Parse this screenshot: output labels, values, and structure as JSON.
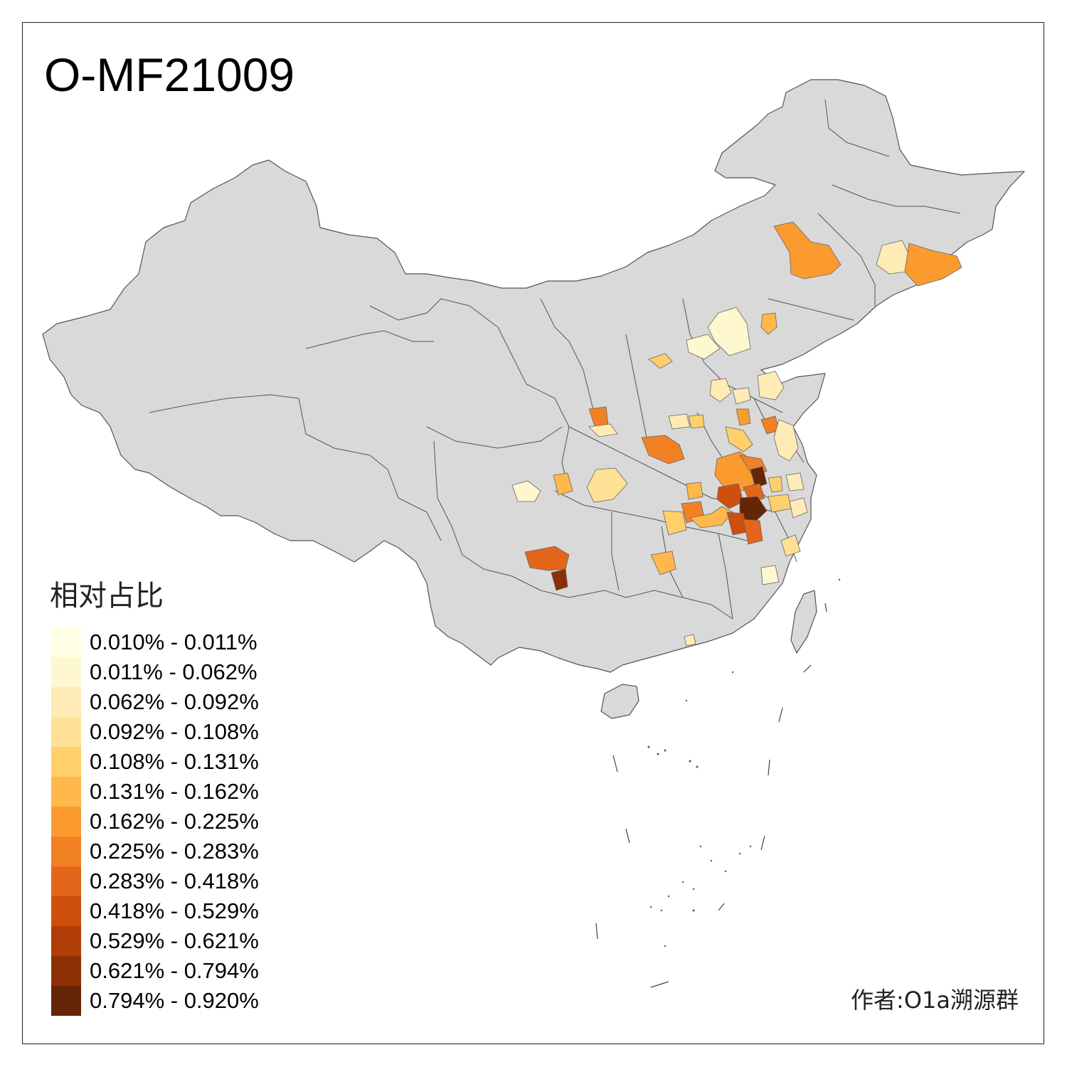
{
  "title": "O-MF21009",
  "legend": {
    "title": "相对占比",
    "items": [
      {
        "label": "0.010% - 0.011%",
        "color": "#FFFFE5"
      },
      {
        "label": "0.011% - 0.062%",
        "color": "#FFF7CF"
      },
      {
        "label": "0.062% - 0.092%",
        "color": "#FEEBB6"
      },
      {
        "label": "0.092% - 0.108%",
        "color": "#FEE195"
      },
      {
        "label": "0.108% - 0.131%",
        "color": "#FECF6B"
      },
      {
        "label": "0.131% - 0.162%",
        "color": "#FEB84B"
      },
      {
        "label": "0.162% - 0.225%",
        "color": "#FB9B2F"
      },
      {
        "label": "0.225% - 0.283%",
        "color": "#F28123"
      },
      {
        "label": "0.283% - 0.418%",
        "color": "#E4661A"
      },
      {
        "label": "0.418% - 0.529%",
        "color": "#CE4F0C"
      },
      {
        "label": "0.529% - 0.621%",
        "color": "#AF3D05"
      },
      {
        "label": "0.621% - 0.794%",
        "color": "#8B3004"
      },
      {
        "label": "0.794% - 0.920%",
        "color": "#662506"
      }
    ]
  },
  "author": "作者:O1a溯源群",
  "colors": {
    "land": "#D9D9D9",
    "border": "#555555",
    "frame": "#222222"
  }
}
